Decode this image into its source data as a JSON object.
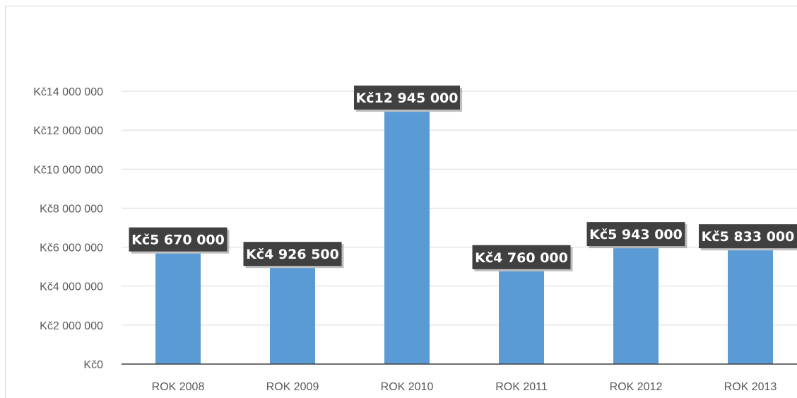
{
  "chart_data": {
    "type": "bar",
    "title": "",
    "xlabel": "",
    "ylabel": "",
    "categories": [
      "ROK 2008",
      "ROK 2009",
      "ROK 2010",
      "ROK 2011",
      "ROK 2012",
      "ROK 2013"
    ],
    "values": [
      5670000,
      4926500,
      12945000,
      4760000,
      5943000,
      5833000
    ],
    "data_labels": [
      "Kč5 670 000",
      "Kč4 926 500",
      "Kč12 945 000",
      "Kč4 760 000",
      "Kč5 943 000",
      "Kč5 833 000"
    ],
    "ylim": [
      0,
      14000000
    ],
    "yticks": [
      0,
      2000000,
      4000000,
      6000000,
      8000000,
      10000000,
      12000000,
      14000000
    ],
    "ytick_labels": [
      "Kč0",
      "Kč2 000 000",
      "Kč4 000 000",
      "Kč6 000 000",
      "Kč8 000 000",
      "Kč10 000 000",
      "Kč12 000 000",
      "Kč14 000 000"
    ],
    "grid": true,
    "legend": "none",
    "colors": {
      "bar": "#5b9bd5",
      "grid": "#d9d9d9",
      "axis": "#404040",
      "tick_text": "#595959",
      "label_bg": "#404040",
      "label_text": "#ffffff"
    }
  }
}
